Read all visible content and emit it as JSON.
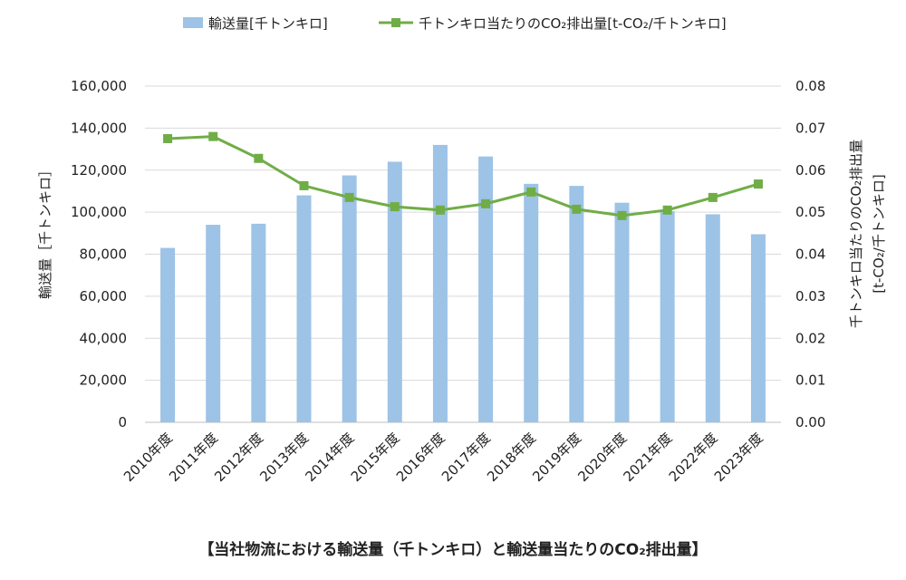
{
  "caption": "【当社物流における輸送量（千トンキロ）と輸送量当たりのCO₂排出量】",
  "chart_data": {
    "type": "bar+line",
    "categories": [
      "2010年度",
      "2011年度",
      "2012年度",
      "2013年度",
      "2014年度",
      "2015年度",
      "2016年度",
      "2017年度",
      "2018年度",
      "2019年度",
      "2020年度",
      "2021年度",
      "2022年度",
      "2023年度"
    ],
    "series": [
      {
        "name": "輸送量[千トンキロ]",
        "type": "bar",
        "axis": "left",
        "color": "#9dc3e6",
        "values": [
          83000,
          94000,
          94500,
          108000,
          117500,
          124000,
          132000,
          126500,
          113500,
          112500,
          104500,
          100500,
          99000,
          89500
        ]
      },
      {
        "name": "千トンキロ当たりのCO₂排出量[t-CO₂/千トンキロ]",
        "type": "line",
        "axis": "right",
        "color": "#70ad47",
        "values": [
          0.0675,
          0.068,
          0.0628,
          0.0563,
          0.0535,
          0.0513,
          0.0505,
          0.052,
          0.0548,
          0.0507,
          0.0492,
          0.0505,
          0.0535,
          0.0567
        ]
      }
    ],
    "left_axis": {
      "label": "輸送量［千トンキロ］",
      "ylim": [
        0,
        160000
      ],
      "ticks": [
        "0",
        "20,000",
        "40,000",
        "60,000",
        "80,000",
        "100,000",
        "120,000",
        "140,000",
        "160,000"
      ]
    },
    "right_axis": {
      "label_line1": "千トンキロ当たりのCO₂排出量",
      "label_line2": "[t-CO₂/千トンキロ]",
      "ylim": [
        0,
        0.08
      ],
      "ticks": [
        "0.00",
        "0.01",
        "0.02",
        "0.03",
        "0.04",
        "0.05",
        "0.06",
        "0.07",
        "0.08"
      ]
    },
    "grid": true,
    "legend_position": "top"
  }
}
